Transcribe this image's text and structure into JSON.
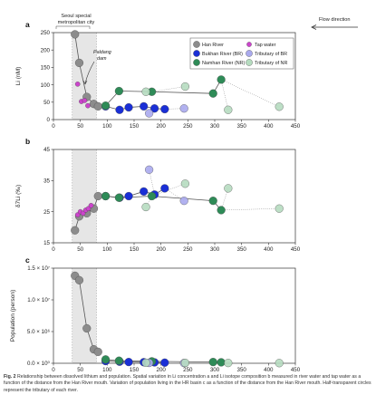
{
  "caption": {
    "label": "Fig. 2",
    "text": "Relationship between dissolved lithium and population. Spatial variation in Li concentration a and Li isotope composition b measured in river water and tap water as a function of the distance from the Han River mouth. Variation of population living in the HR basin c as a function of the distance from the Han River mouth. Half-transparent circles represent the tributary of each river."
  },
  "annotations": {
    "seoul_line1": "Seoul special",
    "seoul_line2": "metropolitan city",
    "dam_line1": "Paldang",
    "dam_line2": "dam",
    "flow": "Flow direction"
  },
  "colors": {
    "han": "#8c8c8c",
    "tap": "#cc44cc",
    "bukhan": "#1a2fd6",
    "namhan": "#2e8b57",
    "trib_br": "#aaaaee",
    "trib_nr": "#b6dcc0",
    "shade": "#e6e6e6"
  },
  "chart_data": [
    {
      "type": "scatter",
      "panel": "a",
      "xlabel": "",
      "ylabel": "Li (nM)",
      "xlim": [
        0,
        450
      ],
      "ylim": [
        0,
        250
      ],
      "xticks": [
        "0",
        "50",
        "100",
        "150",
        "200",
        "250",
        "300",
        "350",
        "400",
        "450"
      ],
      "yticks": [
        "0",
        "50",
        "100",
        "150",
        "200",
        "250"
      ],
      "legend_position": "top-right",
      "legend": [
        "Han River",
        "Bukhan River (BR)",
        "Namhan River (NR)",
        "Tap water",
        "Tributary of BR",
        "Tributary of NR"
      ],
      "series": [
        {
          "name": "Han River",
          "key": "han",
          "connected": true,
          "x": [
            40,
            48,
            62,
            75,
            83
          ],
          "y": [
            245,
            163,
            65,
            45,
            38
          ]
        },
        {
          "name": "Tap water",
          "key": "tap",
          "connected": false,
          "x": [
            45,
            52,
            58,
            64
          ],
          "y": [
            102,
            52,
            55,
            40
          ]
        },
        {
          "name": "Bukhan River (BR)",
          "key": "bukhan",
          "connected": true,
          "x": [
            97,
            123,
            140,
            168,
            188,
            207
          ],
          "y": [
            38,
            28,
            35,
            38,
            32,
            30
          ]
        },
        {
          "name": "Namhan River (NR)",
          "key": "namhan",
          "connected": true,
          "x": [
            97,
            122,
            183,
            297,
            312
          ],
          "y": [
            40,
            82,
            80,
            75,
            115
          ]
        },
        {
          "name": "Tributary of BR",
          "key": "trib_br",
          "connected": false,
          "x": [
            178,
            243
          ],
          "y": [
            18,
            32
          ]
        },
        {
          "name": "Tributary of NR",
          "key": "trib_nr",
          "connected": false,
          "x": [
            172,
            245,
            325,
            420
          ],
          "y": [
            80,
            95,
            28,
            37
          ]
        }
      ],
      "trib_links": [
        [
          [
            188,
            32
          ],
          [
            178,
            18
          ]
        ],
        [
          [
            207,
            30
          ],
          [
            243,
            32
          ]
        ],
        [
          [
            183,
            80
          ],
          [
            172,
            80
          ]
        ],
        [
          [
            183,
            80
          ],
          [
            245,
            95
          ]
        ],
        [
          [
            312,
            115
          ],
          [
            325,
            28
          ]
        ],
        [
          [
            312,
            115
          ],
          [
            420,
            37
          ]
        ]
      ]
    },
    {
      "type": "scatter",
      "panel": "b",
      "xlabel": "",
      "ylabel": "δ7Li (‰)",
      "xlim": [
        0,
        450
      ],
      "ylim": [
        15,
        45
      ],
      "xticks": [
        "0",
        "50",
        "100",
        "150",
        "200",
        "250",
        "300",
        "350",
        "400",
        "450"
      ],
      "yticks": [
        "15",
        "25",
        "35",
        "45"
      ],
      "series": [
        {
          "name": "Han River",
          "key": "han",
          "connected": true,
          "x": [
            40,
            48,
            62,
            75,
            83
          ],
          "y": [
            19,
            23.5,
            24.5,
            26,
            30
          ]
        },
        {
          "name": "Tap water",
          "key": "tap",
          "connected": false,
          "x": [
            45,
            50,
            55,
            60,
            65,
            70
          ],
          "y": [
            24,
            25,
            24.5,
            25.5,
            26,
            27
          ]
        },
        {
          "name": "Bukhan River (BR)",
          "key": "bukhan",
          "connected": true,
          "x": [
            97,
            123,
            140,
            168,
            188,
            207
          ],
          "y": [
            30,
            29.5,
            30,
            31.5,
            30.5,
            32.5
          ]
        },
        {
          "name": "Namhan River (NR)",
          "key": "namhan",
          "connected": true,
          "x": [
            97,
            122,
            183,
            297,
            312
          ],
          "y": [
            30,
            29.5,
            30,
            28.5,
            25.5
          ]
        },
        {
          "name": "Tributary of BR",
          "key": "trib_br",
          "connected": false,
          "x": [
            178,
            243
          ],
          "y": [
            38.5,
            28.5
          ]
        },
        {
          "name": "Tributary of NR",
          "key": "trib_nr",
          "connected": false,
          "x": [
            172,
            245,
            325,
            420
          ],
          "y": [
            26.5,
            34,
            32.5,
            26
          ]
        }
      ],
      "trib_links": [
        [
          [
            188,
            30.5
          ],
          [
            178,
            38.5
          ]
        ],
        [
          [
            207,
            32.5
          ],
          [
            243,
            28.5
          ]
        ],
        [
          [
            183,
            30
          ],
          [
            172,
            26.5
          ]
        ],
        [
          [
            183,
            30
          ],
          [
            245,
            34
          ]
        ],
        [
          [
            312,
            25.5
          ],
          [
            325,
            32.5
          ]
        ],
        [
          [
            312,
            25.5
          ],
          [
            420,
            26
          ]
        ]
      ]
    },
    {
      "type": "line",
      "panel": "c",
      "xlabel": "Distance from the HR mouth (km)",
      "ylabel": "Population (person)",
      "xlim": [
        0,
        450
      ],
      "ylim": [
        0,
        15000000
      ],
      "xticks": [
        "0",
        "50",
        "100",
        "150",
        "200",
        "250",
        "300",
        "350",
        "400",
        "450"
      ],
      "yticks": [
        "0.0 × 10⁰",
        "5.0 × 10⁶",
        "1.0 × 10⁷",
        "1.5 × 10⁷"
      ],
      "series": [
        {
          "name": "Han River",
          "key": "han",
          "connected": true,
          "x": [
            40,
            48,
            62,
            75,
            83
          ],
          "y": [
            13800000,
            13100000,
            5500000,
            2200000,
            1800000
          ]
        },
        {
          "name": "Bukhan River (BR)",
          "key": "bukhan",
          "connected": true,
          "x": [
            97,
            123,
            140,
            168,
            188,
            207
          ],
          "y": [
            350000,
            250000,
            200000,
            170000,
            140000,
            100000
          ]
        },
        {
          "name": "Namhan River (NR)",
          "key": "namhan",
          "connected": true,
          "x": [
            97,
            122,
            183,
            297,
            312
          ],
          "y": [
            600000,
            400000,
            300000,
            200000,
            150000
          ]
        },
        {
          "name": "Tributary of BR",
          "key": "trib_br",
          "connected": false,
          "x": [
            178,
            243
          ],
          "y": [
            60000,
            40000
          ]
        },
        {
          "name": "Tributary of NR",
          "key": "trib_nr",
          "connected": false,
          "x": [
            172,
            245,
            325,
            420
          ],
          "y": [
            80000,
            60000,
            50000,
            30000
          ]
        }
      ],
      "trib_links": []
    }
  ]
}
